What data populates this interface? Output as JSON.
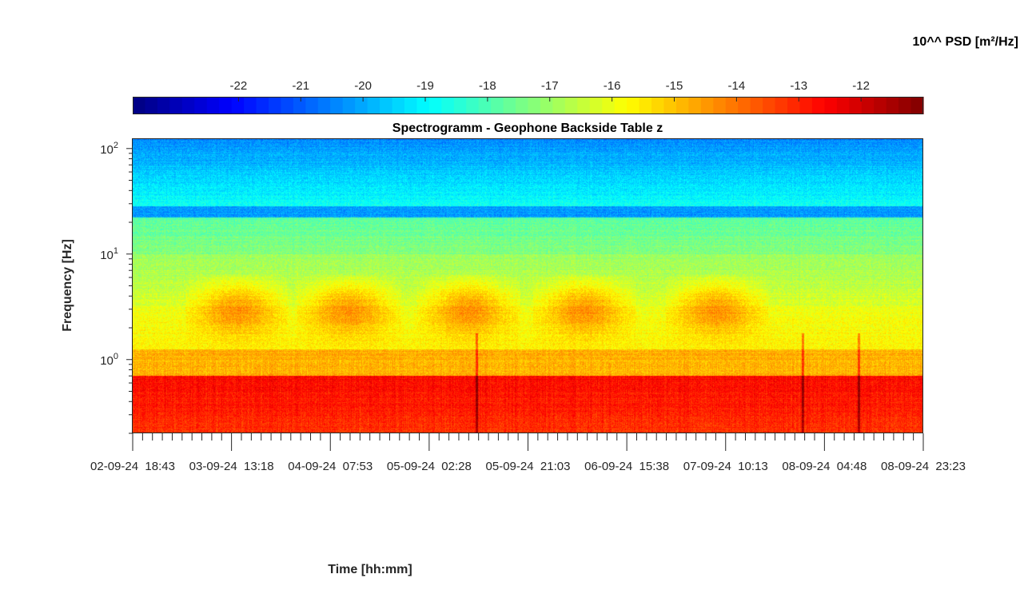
{
  "chart_data": {
    "type": "heatmap",
    "title": "Spectrogramm - Geophone Backside Table z",
    "xlabel": "Time [hh:mm]",
    "ylabel": "Frequency [Hz]",
    "yscale": "log",
    "ylim": [
      0.2,
      125
    ],
    "y_ticks": [
      {
        "base": "10",
        "exp": "0",
        "value": 1
      },
      {
        "base": "10",
        "exp": "1",
        "value": 10
      },
      {
        "base": "10",
        "exp": "2",
        "value": 100
      }
    ],
    "x_ticks": [
      "02-09-24  18:43",
      "03-09-24  13:18",
      "04-09-24  07:53",
      "05-09-24  02:28",
      "05-09-24  21:03",
      "06-09-24  15:38",
      "07-09-24  10:13",
      "08-09-24  04:48",
      "08-09-24  23:23"
    ],
    "colorbar": {
      "label": "10^^ PSD [m²/Hz]",
      "ticks": [
        "-22",
        "-21",
        "-20",
        "-19",
        "-18",
        "-17",
        "-16",
        "-15",
        "-14",
        "-13",
        "-12"
      ],
      "range": [
        -23.7,
        -11.0
      ],
      "colormap": "jet"
    },
    "grid": false,
    "description_values": {
      "low_freq_band_log10_psd": -13.5,
      "mid_freq_band_log10_psd": -15.5,
      "high_freq_band_log10_psd": -20.5
    }
  }
}
